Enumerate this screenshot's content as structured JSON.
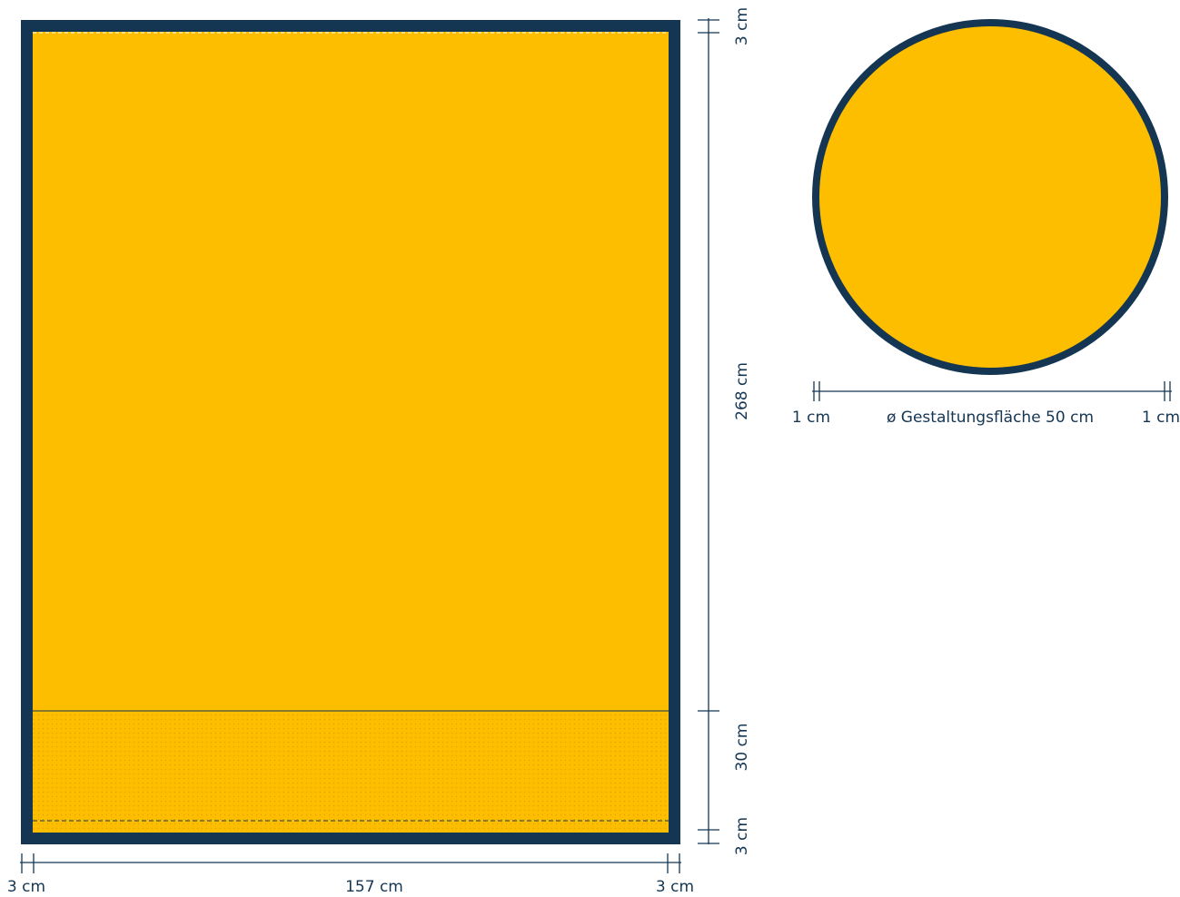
{
  "colors": {
    "frame": "#143653",
    "fill": "#FDBE00",
    "text": "#143653",
    "background": "#ffffff"
  },
  "banner": {
    "width_label": "157 cm",
    "left_margin_label": "3 cm",
    "right_margin_label": "3 cm",
    "top_margin_label": "3 cm",
    "height_label": "268 cm",
    "bottom_zone_label": "30 cm",
    "bottom_margin_label": "3 cm"
  },
  "circle": {
    "diameter_label": "ø Gestaltungsfläche 50 cm",
    "left_margin_label": "1 cm",
    "right_margin_label": "1 cm"
  }
}
